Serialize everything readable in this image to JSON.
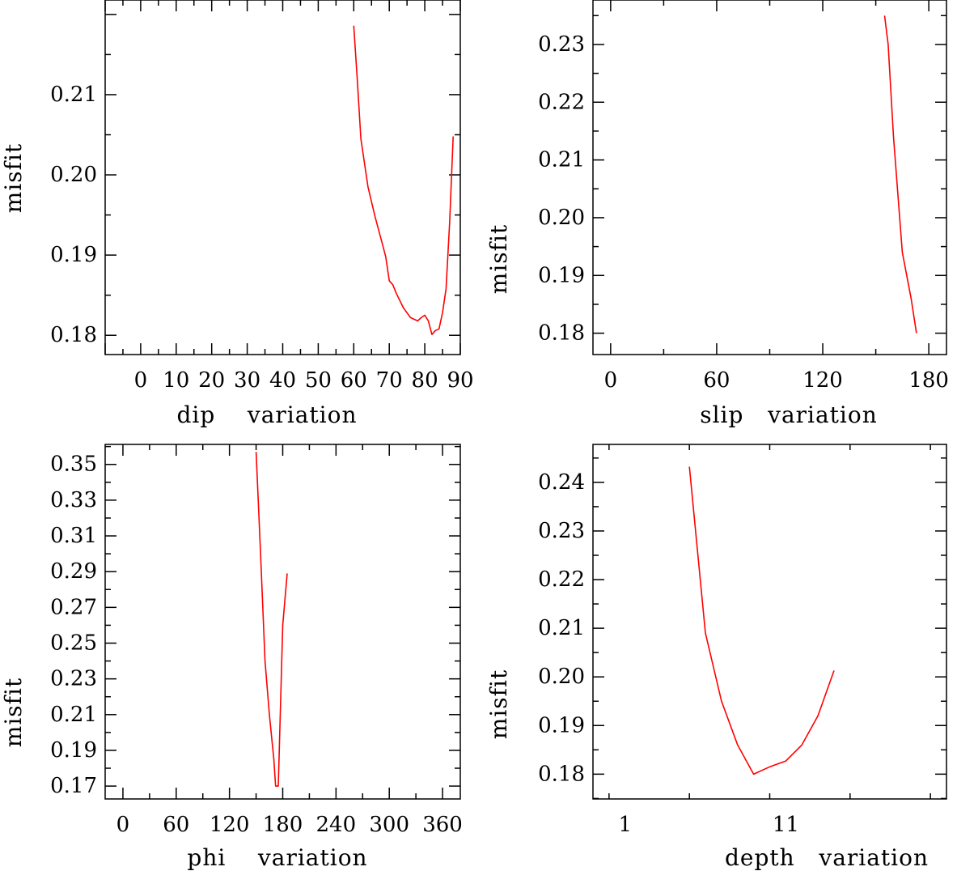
{
  "chart_data": [
    {
      "type": "line",
      "xlabel": "dip    variation",
      "ylabel": "misfit",
      "xlim": [
        -10,
        90
      ],
      "ylim": [
        0.1776,
        0.2218
      ],
      "xticks": [
        0,
        10,
        20,
        30,
        40,
        50,
        60,
        70,
        80,
        90
      ],
      "yticks": [
        0.18,
        0.19,
        0.2,
        0.21
      ],
      "ytick_labels": [
        "0.18",
        "0.19",
        "0.20",
        "0.21"
      ],
      "grid": false,
      "series": [
        {
          "color": "#ff0000",
          "x": [
            60,
            61,
            62,
            64,
            66,
            68,
            69,
            70,
            71,
            72,
            74,
            76,
            78,
            79,
            80,
            81,
            82,
            83,
            84,
            85,
            86,
            87,
            88
          ],
          "y": [
            0.2186,
            0.2118,
            0.2045,
            0.1985,
            0.1948,
            0.1915,
            0.1898,
            0.1868,
            0.1863,
            0.1852,
            0.1834,
            0.1822,
            0.1818,
            0.1822,
            0.1825,
            0.1818,
            0.1801,
            0.1806,
            0.1808,
            0.1828,
            0.1858,
            0.194,
            0.2048
          ]
        }
      ]
    },
    {
      "type": "line",
      "xlabel": "slip   variation",
      "ylabel": "misfit",
      "xlim": [
        -10,
        190
      ],
      "ylim": [
        0.1763,
        0.2377
      ],
      "xticks": [
        0,
        60,
        120,
        180
      ],
      "yticks": [
        0.18,
        0.19,
        0.2,
        0.21,
        0.22,
        0.23
      ],
      "ytick_labels": [
        "0.18",
        "0.19",
        "0.20",
        "0.21",
        "0.22",
        "0.23"
      ],
      "grid": false,
      "series": [
        {
          "color": "#ff0000",
          "x": [
            155,
            157,
            160,
            165,
            170,
            173
          ],
          "y": [
            0.235,
            0.23,
            0.214,
            0.194,
            0.186,
            0.18
          ]
        }
      ]
    },
    {
      "type": "line",
      "xlabel": "phi    variation",
      "ylabel": "misfit",
      "xlim": [
        -20,
        380
      ],
      "ylim": [
        0.1628,
        0.3612
      ],
      "xticks": [
        0,
        60,
        120,
        180,
        240,
        300,
        360
      ],
      "yticks": [
        0.17,
        0.19,
        0.21,
        0.23,
        0.25,
        0.27,
        0.29,
        0.31,
        0.33,
        0.35
      ],
      "ytick_labels": [
        "0.17",
        "0.19",
        "0.21",
        "0.23",
        "0.25",
        "0.27",
        "0.29",
        "0.31",
        "0.33",
        "0.35"
      ],
      "grid": false,
      "series": [
        {
          "color": "#ff0000",
          "x": [
            150,
            155,
            160,
            165,
            168,
            170,
            172,
            175,
            180,
            185
          ],
          "y": [
            0.357,
            0.3,
            0.24,
            0.21,
            0.195,
            0.185,
            0.17,
            0.17,
            0.26,
            0.289
          ]
        }
      ]
    },
    {
      "type": "line",
      "xlabel": "depth   variation",
      "ylabel": "misfit",
      "xlim": [
        -1,
        21
      ],
      "ylim": [
        0.1749,
        0.2478
      ],
      "xticks": [
        1,
        11
      ],
      "yticks": [
        0.18,
        0.19,
        0.2,
        0.21,
        0.22,
        0.23,
        0.24
      ],
      "ytick_labels": [
        "0.18",
        "0.19",
        "0.20",
        "0.21",
        "0.22",
        "0.23",
        "0.24"
      ],
      "grid": false,
      "series": [
        {
          "color": "#ff0000",
          "x": [
            5,
            6,
            7,
            8,
            9,
            10,
            11,
            12,
            13,
            14
          ],
          "y": [
            0.2432,
            0.209,
            0.195,
            0.186,
            0.18,
            0.1815,
            0.1827,
            0.186,
            0.192,
            0.2013
          ]
        }
      ]
    }
  ]
}
